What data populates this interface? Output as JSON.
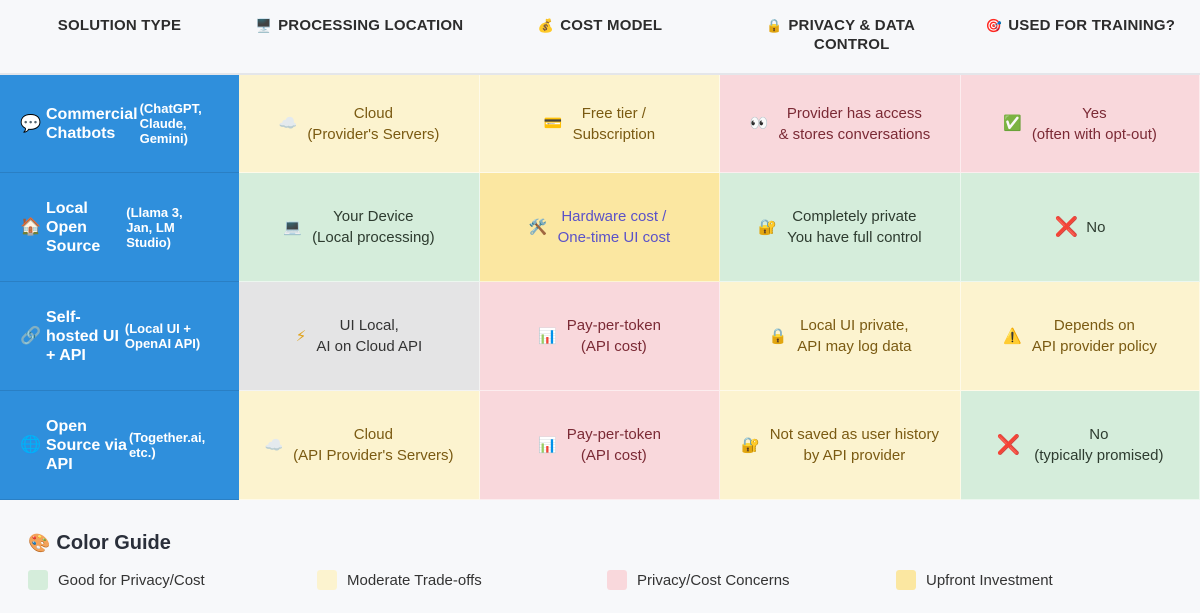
{
  "headers": [
    {
      "icon": "",
      "lines": [
        "SOLUTION TYPE"
      ]
    },
    {
      "icon": "🖥️",
      "lines": [
        "PROCESSING LOCATION"
      ]
    },
    {
      "icon": "💰",
      "lines": [
        "COST MODEL"
      ]
    },
    {
      "icon": "🔒",
      "lines": [
        "PRIVACY & DATA",
        "CONTROL"
      ]
    },
    {
      "icon": "🎯",
      "lines": [
        "USED FOR TRAINING?"
      ]
    }
  ],
  "rows": [
    {
      "label": {
        "icon": "💬",
        "main": [
          "Commercial",
          "Chatbots"
        ],
        "sub": [
          "(ChatGPT,",
          "Claude,",
          "Gemini)"
        ]
      },
      "cells": [
        {
          "icon": "☁️",
          "lines": [
            "Cloud",
            "(Provider's Servers)"
          ],
          "tone": "yellow"
        },
        {
          "icon": "💳",
          "lines": [
            "Free tier /",
            "Subscription"
          ],
          "tone": "yellow"
        },
        {
          "icon": "👀",
          "lines": [
            "Provider has access",
            "& stores conversations"
          ],
          "tone": "pink"
        },
        {
          "icon": "✅",
          "lines": [
            "Yes",
            "(often with opt-out)"
          ],
          "tone": "pink"
        }
      ]
    },
    {
      "label": {
        "icon": "🏠",
        "main": [
          "Local",
          "Open",
          "Source"
        ],
        "sub": [
          "(Llama 3,",
          "Jan, LM",
          "Studio)"
        ]
      },
      "cells": [
        {
          "icon": "💻",
          "lines": [
            "Your Device",
            "(Local processing)"
          ],
          "tone": "green"
        },
        {
          "icon": "🛠️",
          "lines": [
            "Hardware cost /",
            "One-time UI cost"
          ],
          "tone": "gold"
        },
        {
          "icon": "🔐",
          "lines": [
            "Completely private",
            "You have full control"
          ],
          "tone": "green"
        },
        {
          "icon": "❌",
          "lines": [
            "No"
          ],
          "tone": "green",
          "inline": true
        }
      ]
    },
    {
      "label": {
        "icon": "🔗",
        "main": [
          "Self-",
          "hosted UI",
          "+ API"
        ],
        "sub": [
          "(Local UI +",
          "OpenAI API)"
        ]
      },
      "cells": [
        {
          "icon": "⚡",
          "lines": [
            "UI Local,",
            "AI on Cloud API"
          ],
          "tone": "gray"
        },
        {
          "icon": "📊",
          "lines": [
            "Pay-per-token",
            "(API cost)"
          ],
          "tone": "pink"
        },
        {
          "icon": "🔒",
          "lines": [
            "Local UI private,",
            "API may log data"
          ],
          "tone": "yellow"
        },
        {
          "icon": "⚠️",
          "lines": [
            "Depends on",
            "API provider policy"
          ],
          "tone": "yellow"
        }
      ]
    },
    {
      "label": {
        "icon": "🌐",
        "main": [
          "Open",
          "Source via",
          "API"
        ],
        "sub": [
          "(Together.ai,",
          "etc.)"
        ]
      },
      "cells": [
        {
          "icon": "☁️",
          "lines": [
            "Cloud",
            "(API Provider's Servers)"
          ],
          "tone": "yellow"
        },
        {
          "icon": "📊",
          "lines": [
            "Pay-per-token",
            "(API cost)"
          ],
          "tone": "pink"
        },
        {
          "icon": "🔐",
          "lines": [
            "Not saved as user history",
            "by API provider"
          ],
          "tone": "yellow"
        },
        {
          "icon": "❌",
          "lines": [
            "No",
            "(typically promised)"
          ],
          "tone": "green"
        }
      ]
    }
  ],
  "guide": {
    "icon": "🎨",
    "title": "Color Guide",
    "items": [
      {
        "label": "Good for Privacy/Cost",
        "color": "#d5eddb"
      },
      {
        "label": "Moderate Trade-offs",
        "color": "#fcf3cf"
      },
      {
        "label": "Privacy/Cost Concerns",
        "color": "#f9d8dc"
      },
      {
        "label": "Upfront Investment",
        "color": "#fbe7a1"
      }
    ]
  }
}
